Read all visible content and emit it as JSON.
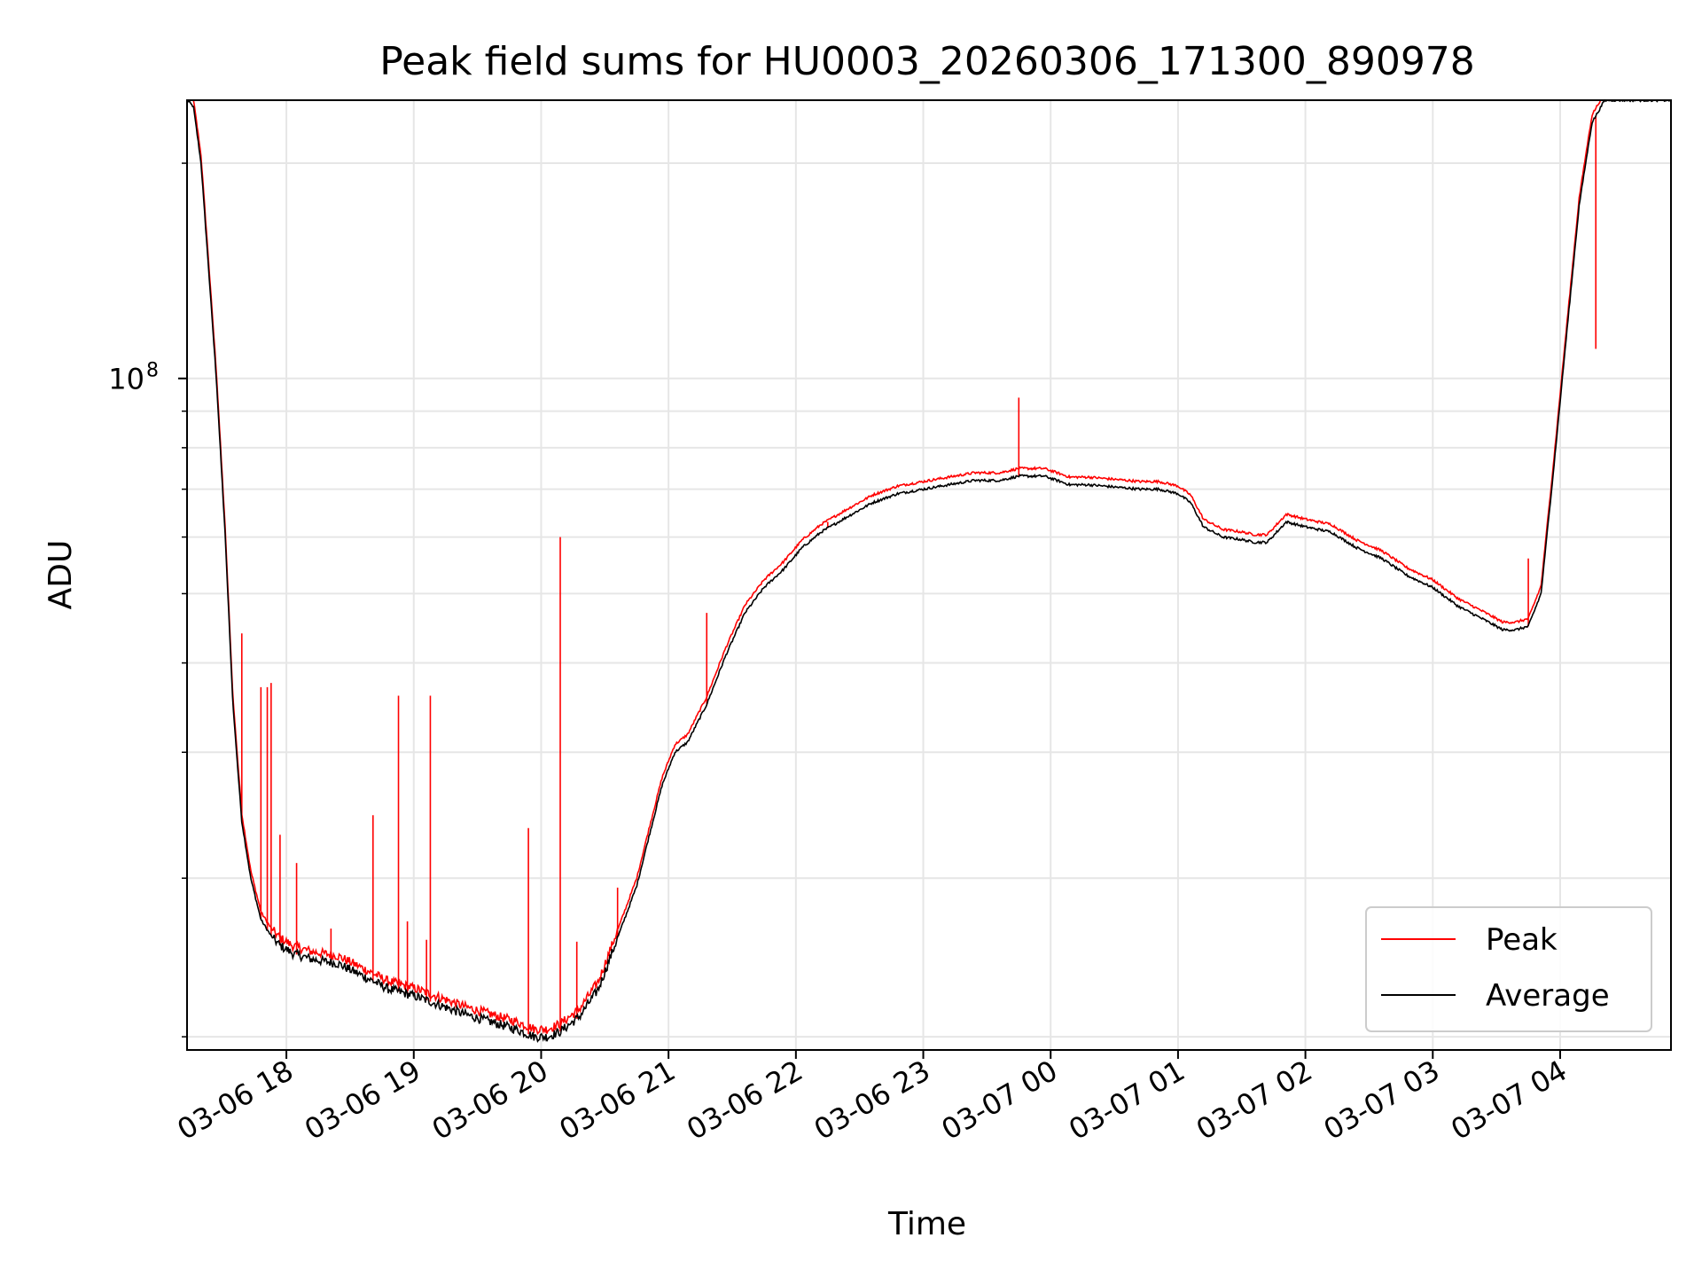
{
  "chart_data": {
    "type": "line",
    "title": "Peak field sums for HU0003_20260306_171300_890978",
    "xlabel": "Time",
    "ylabel": "ADU",
    "yscale": "log",
    "ylim": [
      11500000,
      245000000
    ],
    "xlim_hours": [
      17.22,
      4.87
    ],
    "x_ticks": [
      {
        "label": "03-06 18",
        "hour": 18
      },
      {
        "label": "03-06 19",
        "hour": 19
      },
      {
        "label": "03-06 20",
        "hour": 20
      },
      {
        "label": "03-06 21",
        "hour": 21
      },
      {
        "label": "03-06 22",
        "hour": 22
      },
      {
        "label": "03-06 23",
        "hour": 23
      },
      {
        "label": "03-07 00",
        "hour": 24
      },
      {
        "label": "03-07 01",
        "hour": 25
      },
      {
        "label": "03-07 02",
        "hour": 26
      },
      {
        "label": "03-07 03",
        "hour": 27
      },
      {
        "label": "03-07 04",
        "hour": 28
      }
    ],
    "y_major_tick": {
      "base": "10",
      "exponent": "8",
      "value": 100000000
    },
    "y_minor_ticks": [
      12000000,
      20000000,
      30000000,
      40000000,
      50000000,
      60000000,
      70000000,
      80000000,
      90000000,
      200000000
    ],
    "grid": true,
    "legend": {
      "position": "lower-right",
      "entries": [
        {
          "name": "Peak",
          "color": "#ff0000"
        },
        {
          "name": "Average",
          "color": "#000000"
        }
      ]
    },
    "series": [
      {
        "name": "Average",
        "color": "#000000",
        "hours": [
          17.22,
          17.27,
          17.33,
          17.38,
          17.45,
          17.52,
          17.58,
          17.65,
          17.72,
          17.8,
          17.88,
          17.95,
          18.05,
          18.2,
          18.4,
          18.6,
          18.8,
          19.0,
          19.2,
          19.4,
          19.6,
          19.8,
          19.95,
          20.05,
          20.15,
          20.3,
          20.45,
          20.6,
          20.75,
          20.85,
          20.95,
          21.05,
          21.15,
          21.3,
          21.45,
          21.6,
          21.75,
          21.9,
          22.05,
          22.2,
          22.4,
          22.6,
          22.8,
          23.0,
          23.2,
          23.4,
          23.6,
          23.75,
          23.85,
          23.95,
          24.05,
          24.15,
          24.3,
          24.5,
          24.7,
          24.85,
          25.0,
          25.1,
          25.2,
          25.35,
          25.5,
          25.6,
          25.7,
          25.85,
          26.0,
          26.2,
          26.4,
          26.6,
          26.8,
          27.0,
          27.2,
          27.4,
          27.55,
          27.65,
          27.75,
          27.85,
          27.95,
          28.05,
          28.15,
          28.25,
          28.35,
          28.45,
          28.55,
          28.65,
          28.8,
          28.87
        ],
        "values": [
          245000000,
          240000000,
          200000000,
          150000000,
          100000000,
          60000000,
          35000000,
          24000000,
          20000000,
          17500000,
          16600000,
          16100000,
          15700000,
          15400000,
          15200000,
          14600000,
          14000000,
          13700000,
          13300000,
          12900000,
          12600000,
          12300000,
          12000000,
          12000000,
          12200000,
          12800000,
          14000000,
          16500000,
          19500000,
          23000000,
          27000000,
          30000000,
          31000000,
          35000000,
          41000000,
          47000000,
          51000000,
          54000000,
          58000000,
          61000000,
          64000000,
          67000000,
          69000000,
          70000000,
          71000000,
          72000000,
          72000000,
          73000000,
          73000000,
          73000000,
          72000000,
          71000000,
          71000000,
          70500000,
          70000000,
          70000000,
          69000000,
          67000000,
          62000000,
          60000000,
          59500000,
          59000000,
          59000000,
          63000000,
          62000000,
          61000000,
          58000000,
          56000000,
          53000000,
          51000000,
          48000000,
          46000000,
          44500000,
          44500000,
          45000000,
          50000000,
          75000000,
          115000000,
          175000000,
          228000000,
          245000000,
          245000000,
          245000000,
          245000000,
          245000000,
          245000000
        ]
      },
      {
        "name": "Peak",
        "color": "#ff0000",
        "spikes": [
          {
            "hour": 17.65,
            "value": 44000000
          },
          {
            "hour": 17.8,
            "value": 37000000
          },
          {
            "hour": 17.85,
            "value": 37000000
          },
          {
            "hour": 17.88,
            "value": 37500000
          },
          {
            "hour": 17.95,
            "value": 23000000
          },
          {
            "hour": 18.08,
            "value": 21000000
          },
          {
            "hour": 18.35,
            "value": 17000000
          },
          {
            "hour": 18.68,
            "value": 24500000
          },
          {
            "hour": 18.88,
            "value": 36000000
          },
          {
            "hour": 18.95,
            "value": 17400000
          },
          {
            "hour": 19.1,
            "value": 16400000
          },
          {
            "hour": 19.13,
            "value": 36000000
          },
          {
            "hour": 19.9,
            "value": 23500000
          },
          {
            "hour": 20.15,
            "value": 60000000
          },
          {
            "hour": 20.28,
            "value": 16300000
          },
          {
            "hour": 20.6,
            "value": 19400000
          },
          {
            "hour": 21.3,
            "value": 47000000
          },
          {
            "hour": 22.25,
            "value": 63000000
          },
          {
            "hour": 23.75,
            "value": 94000000
          },
          {
            "hour": 27.75,
            "value": 56000000
          },
          {
            "hour": 28.28,
            "value": 110000000
          }
        ]
      }
    ]
  }
}
